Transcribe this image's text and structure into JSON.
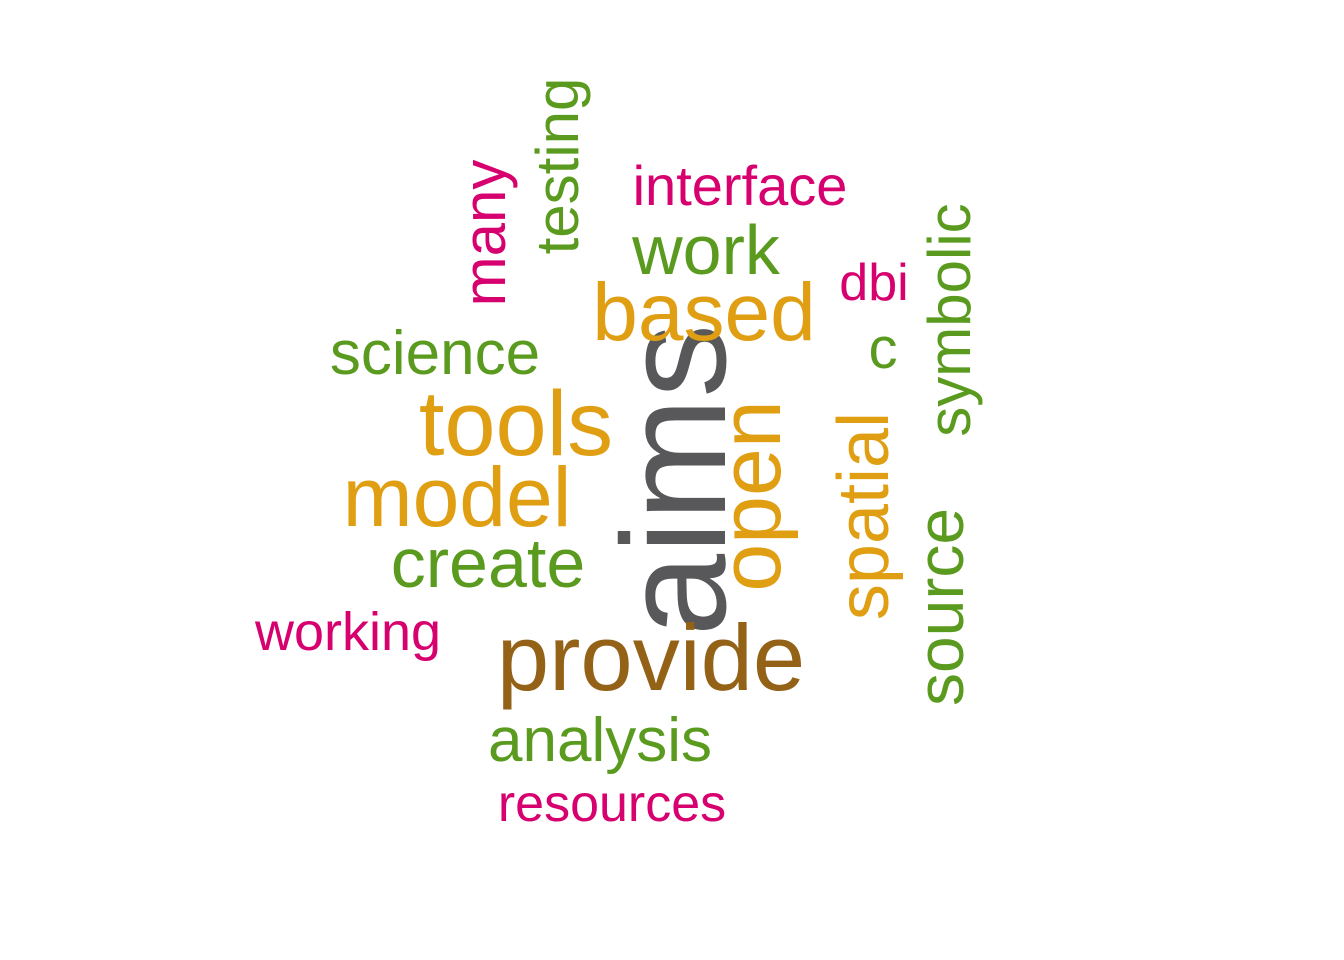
{
  "colors": {
    "gray": "#58585a",
    "brown": "#946217",
    "orange": "#e09e12",
    "green": "#5a9b1f",
    "magenta": "#d7006f",
    "background": "#ffffff"
  },
  "words": [
    {
      "text": "aims",
      "color": "#58585a",
      "rotated": true
    },
    {
      "text": "provide",
      "color": "#946217",
      "rotated": false
    },
    {
      "text": "tools",
      "color": "#e09e12",
      "rotated": false
    },
    {
      "text": "model",
      "color": "#e09e12",
      "rotated": false
    },
    {
      "text": "open",
      "color": "#e09e12",
      "rotated": true
    },
    {
      "text": "based",
      "color": "#e09e12",
      "rotated": false
    },
    {
      "text": "spatial",
      "color": "#e09e12",
      "rotated": true
    },
    {
      "text": "create",
      "color": "#5a9b1f",
      "rotated": false
    },
    {
      "text": "work",
      "color": "#5a9b1f",
      "rotated": false
    },
    {
      "text": "source",
      "color": "#5a9b1f",
      "rotated": true
    },
    {
      "text": "symbolic",
      "color": "#5a9b1f",
      "rotated": true
    },
    {
      "text": "science",
      "color": "#5a9b1f",
      "rotated": false
    },
    {
      "text": "analysis",
      "color": "#5a9b1f",
      "rotated": false
    },
    {
      "text": "testing",
      "color": "#5a9b1f",
      "rotated": true
    },
    {
      "text": "many",
      "color": "#d7006f",
      "rotated": true
    },
    {
      "text": "interface",
      "color": "#d7006f",
      "rotated": false
    },
    {
      "text": "working",
      "color": "#d7006f",
      "rotated": false
    },
    {
      "text": "resources",
      "color": "#d7006f",
      "rotated": false
    },
    {
      "text": "dbi",
      "color": "#d7006f",
      "rotated": false
    },
    {
      "text": "c",
      "color": "#5a9b1f",
      "rotated": false
    }
  ]
}
